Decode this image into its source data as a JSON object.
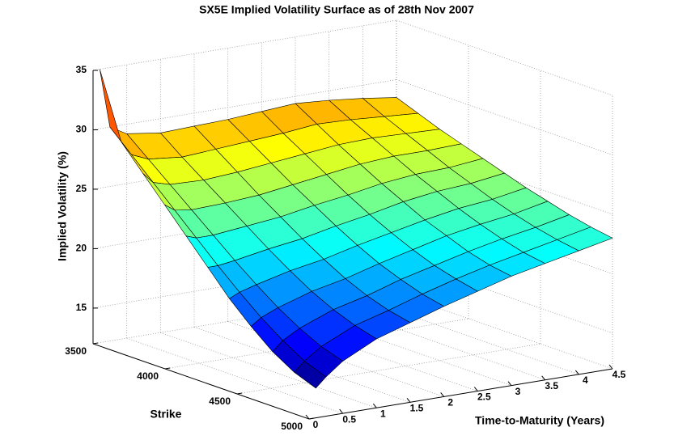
{
  "chart_data": {
    "type": "surface",
    "title": "SX5E Implied Volatility Surface as of 28th Nov 2007",
    "x_label": "Time-to-Maturity (Years)",
    "y_label": "Strike",
    "z_label": "Implied Volatility (%)",
    "colormap": "jet",
    "grid": true,
    "x": [
      0.1,
      0.25,
      0.5,
      1,
      1.5,
      2,
      2.5,
      3,
      3.5,
      4,
      4.5
    ],
    "y": [
      3500,
      3650,
      3800,
      3950,
      4100,
      4250,
      4400,
      4550,
      4700,
      4850,
      5000
    ],
    "z": [
      [
        35,
        29.5,
        27.5,
        25.5,
        23.5,
        21.5,
        19.5,
        17.8,
        16.3,
        15.2,
        14.5
      ],
      [
        30,
        28.3,
        26.6,
        24.9,
        23.2,
        21.5,
        19.9,
        18.4,
        17.1,
        16,
        15.3
      ],
      [
        29.2,
        27.7,
        26.2,
        24.7,
        23.2,
        21.7,
        20.3,
        19,
        17.9,
        17,
        16.4
      ],
      [
        28.8,
        27.4,
        26.1,
        24.8,
        23.5,
        22.2,
        21,
        19.9,
        19,
        18.3,
        17.8
      ],
      [
        28.9,
        27.6,
        26.3,
        25,
        23.8,
        22.6,
        21.5,
        20.5,
        19.7,
        19.1,
        18.7
      ],
      [
        29,
        27.8,
        26.6,
        25.4,
        24.3,
        23.2,
        22.2,
        21.3,
        20.6,
        20,
        19.6
      ],
      [
        29.2,
        28,
        26.9,
        25.8,
        24.7,
        23.7,
        22.8,
        22,
        21.3,
        20.8,
        20.4
      ],
      [
        29.4,
        28.3,
        27.2,
        26.2,
        25.2,
        24.3,
        23.4,
        22.7,
        22,
        21.5,
        21.2
      ],
      [
        29.2,
        28.2,
        27.3,
        26.4,
        25.5,
        24.7,
        23.9,
        23.2,
        22.6,
        22.1,
        21.8
      ],
      [
        28.9,
        28,
        27.2,
        26.4,
        25.6,
        24.9,
        24.2,
        23.6,
        23.1,
        22.7,
        22.4
      ],
      [
        28.5,
        27.8,
        27.1,
        26.5,
        25.9,
        25.3,
        24.7,
        24.2,
        23.7,
        23.3,
        23
      ]
    ],
    "xlim": [
      0,
      4.5
    ],
    "xticks": [
      0,
      0.5,
      1,
      1.5,
      2,
      2.5,
      3,
      3.5,
      4,
      4.5
    ],
    "ylim": [
      3500,
      5000
    ],
    "yticks": [
      3500,
      4000,
      4500,
      5000
    ],
    "zlim": [
      12,
      35
    ],
    "zticks": [
      15,
      20,
      25,
      30,
      35
    ]
  }
}
